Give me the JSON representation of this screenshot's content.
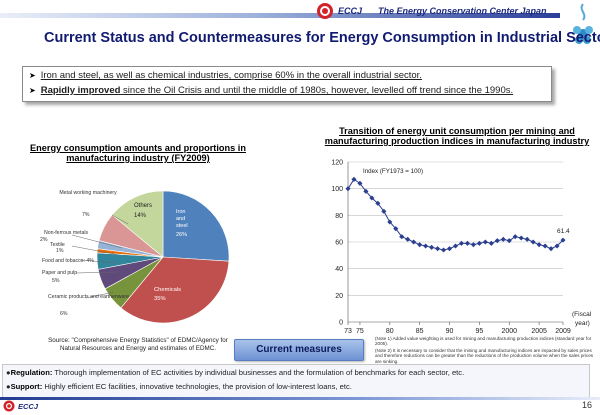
{
  "header": {
    "org_short": "ECCJ",
    "org_full": "The Energy Conservation Center Japan",
    "title": "Current Status and Countermeasures for Energy Consumption in Industrial Sector"
  },
  "bullets": [
    {
      "underlined": "Iron and steel, as well as chemical industries, comprise 60% in the overall industrial sector.",
      "rest": ""
    },
    {
      "bold": "Rapidly improved",
      "rest": " since the Oil Crisis and until the middle of 1980s, however, levelled off trend since the 1990s."
    }
  ],
  "chart_data": [
    {
      "type": "pie",
      "title": "Energy consumption amounts and proportions in manufacturing industry (FY2009)",
      "slices": [
        {
          "label": "Iron and steel",
          "value": 26,
          "value_text": "26%",
          "color": "#4f81bd"
        },
        {
          "label": "Chemicals",
          "value": 35,
          "value_text": "35%",
          "color": "#c0504d"
        },
        {
          "label": "Ceramic products and earthenware",
          "value": 6,
          "value_text": "6%",
          "color": "#77933c"
        },
        {
          "label": "Paper and pulp",
          "value": 5,
          "value_text": "5%",
          "color": "#5f4a7b"
        },
        {
          "label": "Food and tobacco",
          "value": 4,
          "value_text": "4%",
          "color": "#31859c"
        },
        {
          "label": "Textile",
          "value": 1,
          "value_text": "1%",
          "color": "#e46c0a"
        },
        {
          "label": "Non-ferrous metals",
          "value": 2,
          "value_text": "2%",
          "color": "#95b3d7"
        },
        {
          "label": "Metal working machinery",
          "value": 7,
          "value_text": "7%",
          "color": "#d99694"
        },
        {
          "label": "Others",
          "value": 14,
          "value_text": "14%",
          "color": "#c3d69b"
        }
      ]
    },
    {
      "type": "line",
      "title": "Transition of energy unit consumption per mining and manufacturing production indices in manufacturing industry",
      "series_label": "Index (FY1973 = 100)",
      "xlabel": "(Fiscal year)",
      "x": [
        1973,
        1974,
        1975,
        1976,
        1977,
        1978,
        1979,
        1980,
        1981,
        1982,
        1983,
        1984,
        1985,
        1986,
        1987,
        1988,
        1989,
        1990,
        1991,
        1992,
        1993,
        1994,
        1995,
        1996,
        1997,
        1998,
        1999,
        2000,
        2001,
        2002,
        2003,
        2004,
        2005,
        2006,
        2007,
        2008,
        2009
      ],
      "y": [
        100,
        107,
        104,
        98,
        93,
        89,
        83,
        75,
        70,
        64,
        62,
        60,
        58,
        57,
        56,
        55,
        54,
        55,
        57,
        59,
        59,
        58,
        59,
        60,
        59,
        61,
        62,
        61,
        64,
        63,
        62,
        60,
        58,
        57,
        55,
        57,
        61.4
      ],
      "xticks": [
        "73",
        "75",
        "80",
        "85",
        "90",
        "95",
        "2000",
        "2005",
        "2009"
      ],
      "xtick_values": [
        1973,
        1975,
        1980,
        1985,
        1990,
        1995,
        2000,
        2005,
        2009
      ],
      "yticks": [
        "0",
        "20",
        "40",
        "60",
        "80",
        "100",
        "120"
      ],
      "ylim": [
        0,
        120
      ],
      "end_label": "61.4"
    }
  ],
  "pie_labels": {
    "metal_working": "Metal working machinery",
    "metal_pct": "7%",
    "nonferrous": "Non-ferrous metals",
    "nonferrous_pct": "2%",
    "textile": "Textile",
    "textile_pct": "1%",
    "food": "Food and tobacco: 4%",
    "paper": "Paper and pulp",
    "paper_pct": "5%",
    "ceramic": "Ceramic products and earthenware",
    "ceramic_pct": "6%",
    "others": "Others",
    "others_pct": "14%",
    "iron_1": "Iron",
    "iron_2": "and",
    "iron_3": "steel",
    "iron_pct": "26%",
    "chem": "Chemicals",
    "chem_pct": "35%"
  },
  "source_note": "Source: \"Comprehensive Energy Statistics\" of EDMC/Agency for Natural Resources and Energy and estimates of EDMC.",
  "notes": [
    "(Note 1) Added value weighting is used for mining and manufacturing production indices (standard year for 2005).",
    "(Note 2) It is necessary to consider that the mining and manufacturing indices are impacted by sales prices and therefore reductions can be greater than the reductions of the production volume when the sales prices are sinking."
  ],
  "countermeasures": {
    "button_label": "Current measures",
    "items": [
      {
        "bold": "Regulation:",
        "rest": " Thorough implementation of EC activities by individual businesses and the formulation of benchmarks for each sector, etc."
      },
      {
        "bold": "Support:",
        "rest": " Highly efficient EC facilities, innovative technologies, the provision of low-interest loans, etc."
      }
    ]
  },
  "footer": {
    "org_short": "ECCJ",
    "page_number": "16"
  }
}
